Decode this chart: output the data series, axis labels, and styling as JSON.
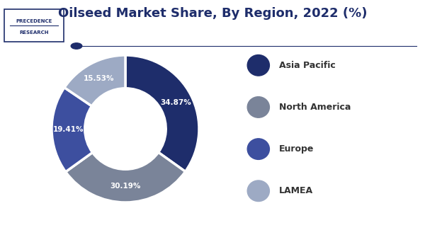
{
  "title": "Oilseed Market Share, By Region, 2022 (%)",
  "labels": [
    "Asia Pacific",
    "North America",
    "Europe",
    "LAMEA"
  ],
  "values": [
    34.87,
    30.19,
    19.41,
    15.53
  ],
  "colors": [
    "#1e2d6b",
    "#7a8499",
    "#3d4f9f",
    "#9daac4"
  ],
  "pct_labels": [
    "34.87%",
    "30.19%",
    "19.41%",
    "15.53%"
  ],
  "legend_colors": [
    "#1e2d6b",
    "#7a8499",
    "#3d4f9f",
    "#9daac4"
  ],
  "background_color": "#ffffff",
  "title_color": "#1e2d6b",
  "title_fontsize": 13,
  "separator_color": "#1e2d6b",
  "logo_text1": "PRECEDENCE",
  "logo_text2": "RESEARCH",
  "logo_border_color": "#1e2d6b",
  "logo_text_color": "#1e2d6b"
}
